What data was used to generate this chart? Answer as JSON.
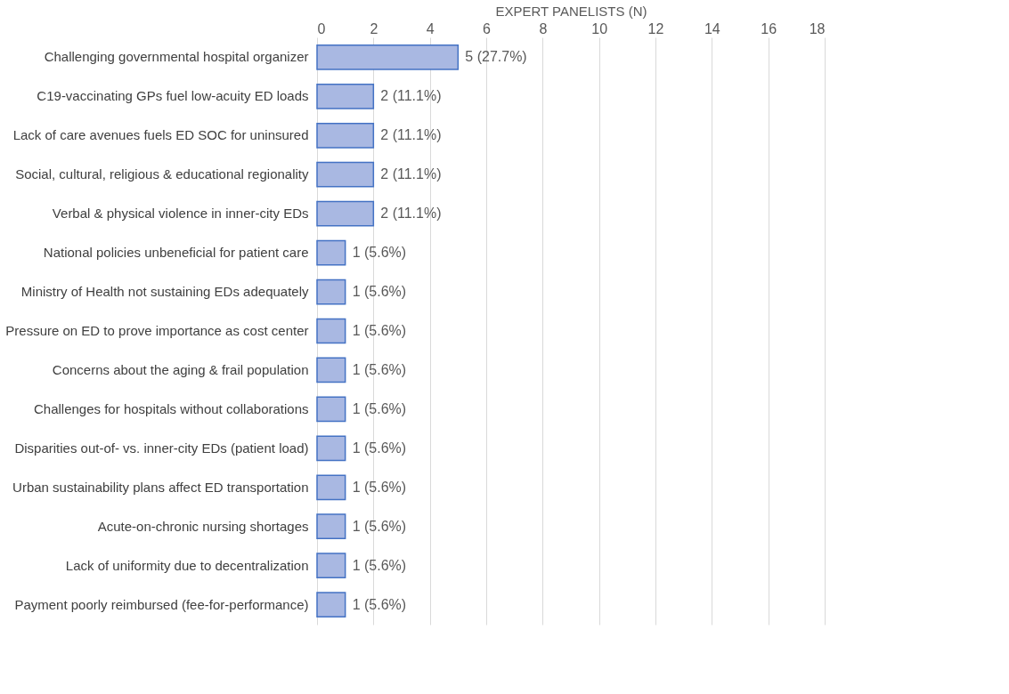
{
  "chart_data": {
    "type": "bar",
    "orientation": "horizontal",
    "xlabel": "EXPERT PANELISTS (N)",
    "categories": [
      "Challenging governmental hospital organizer",
      "C19-vaccinating GPs fuel low-acuity ED loads",
      "Lack of care avenues fuels ED SOC for uninsured",
      "Social, cultural, religious & educational regionality",
      "Verbal & physical violence in inner-city EDs",
      "National policies unbeneficial for patient care",
      "Ministry of Health not sustaining EDs adequately",
      "Pressure on ED to prove importance as cost center",
      "Concerns about the aging & frail population",
      "Challenges for hospitals without collaborations",
      "Disparities out-of- vs. inner-city EDs (patient load)",
      "Urban sustainability plans affect ED transportation",
      "Acute-on-chronic nursing shortages",
      "Lack of uniformity due to decentralization",
      "Payment poorly reimbursed (fee-for-performance)"
    ],
    "values": [
      5,
      2,
      2,
      2,
      2,
      1,
      1,
      1,
      1,
      1,
      1,
      1,
      1,
      1,
      1
    ],
    "value_labels": [
      "5 (27.7%)",
      "2 (11.1%)",
      "2 (11.1%)",
      "2 (11.1%)",
      "2 (11.1%)",
      "1 (5.6%)",
      "1 (5.6%)",
      "1 (5.6%)",
      "1 (5.6%)",
      "1 (5.6%)",
      "1 (5.6%)",
      "1 (5.6%)",
      "1 (5.6%)",
      "1 (5.6%)",
      "1 (5.6%)"
    ],
    "color": "#a9b8e2",
    "xlim": [
      0,
      18
    ],
    "xticks": [
      0,
      2,
      4,
      6,
      8,
      10,
      12,
      14,
      16,
      18
    ],
    "grid": "x"
  }
}
